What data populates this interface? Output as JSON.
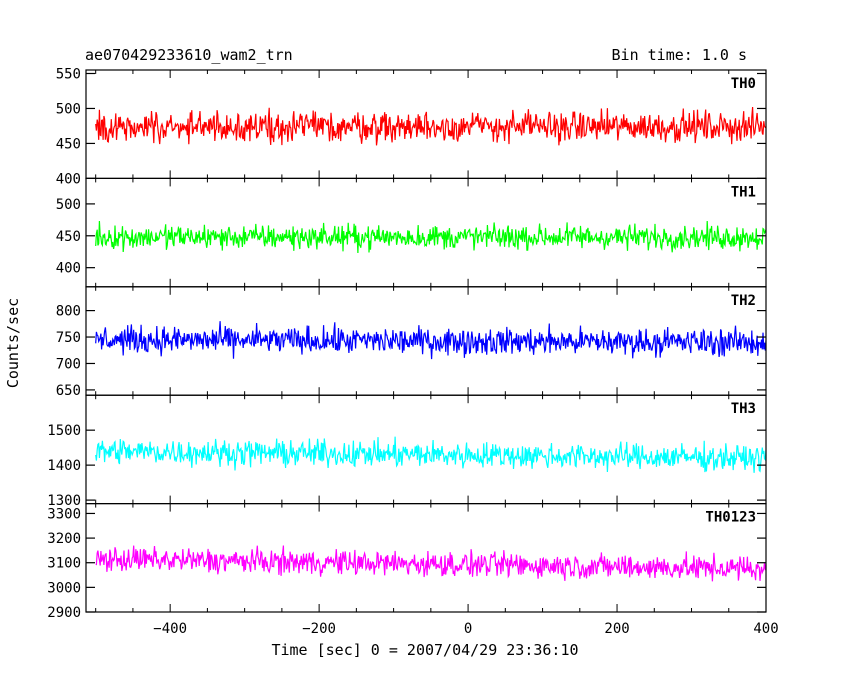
{
  "header": {
    "left_title": "ae070429233610_wam2_trn",
    "right_title": "Bin time: 1.0 s"
  },
  "axes": {
    "ylabel": "Counts/sec",
    "xlabel": "Time [sec] 0 = 2007/04/29 23:36:10"
  },
  "chart_data": {
    "type": "line",
    "x_range": [
      -513,
      400
    ],
    "x_ticks": [
      -400,
      -200,
      0,
      200,
      400
    ],
    "x_tick_labels": [
      "−400",
      "−200",
      "0",
      "200",
      "400"
    ],
    "panels": [
      {
        "name": "TH0",
        "color": "#ff0000",
        "ylim": [
          400,
          555
        ],
        "y_ticks": [
          400,
          450,
          500,
          550
        ],
        "y_tick_labels": [
          "400",
          "450",
          "500",
          "550"
        ],
        "mean": 474,
        "amplitude": 32,
        "trend": 0
      },
      {
        "name": "TH1",
        "color": "#00ff00",
        "ylim": [
          370,
          540
        ],
        "y_ticks": [
          400,
          450,
          500
        ],
        "y_tick_labels": [
          "400",
          "450",
          "500"
        ],
        "mean": 448,
        "amplitude": 28,
        "trend": 0
      },
      {
        "name": "TH2",
        "color": "#0000ff",
        "ylim": [
          640,
          845
        ],
        "y_ticks": [
          650,
          700,
          750,
          800
        ],
        "y_tick_labels": [
          "650",
          "700",
          "750",
          "800"
        ],
        "mean": 745,
        "amplitude": 38,
        "trend": -5
      },
      {
        "name": "TH3",
        "color": "#00ffff",
        "ylim": [
          1290,
          1600
        ],
        "y_ticks": [
          1300,
          1400,
          1500
        ],
        "y_tick_labels": [
          "1300",
          "1400",
          "1500"
        ],
        "mean": 1440,
        "amplitude": 55,
        "trend": -20
      },
      {
        "name": "TH0123",
        "color": "#ff00ff",
        "ylim": [
          2900,
          3340
        ],
        "y_ticks": [
          2900,
          3000,
          3100,
          3200,
          3300
        ],
        "y_tick_labels": [
          "2900",
          "3000",
          "3100",
          "3200",
          "3300"
        ],
        "mean": 3115,
        "amplitude": 75,
        "trend": -40
      }
    ]
  }
}
